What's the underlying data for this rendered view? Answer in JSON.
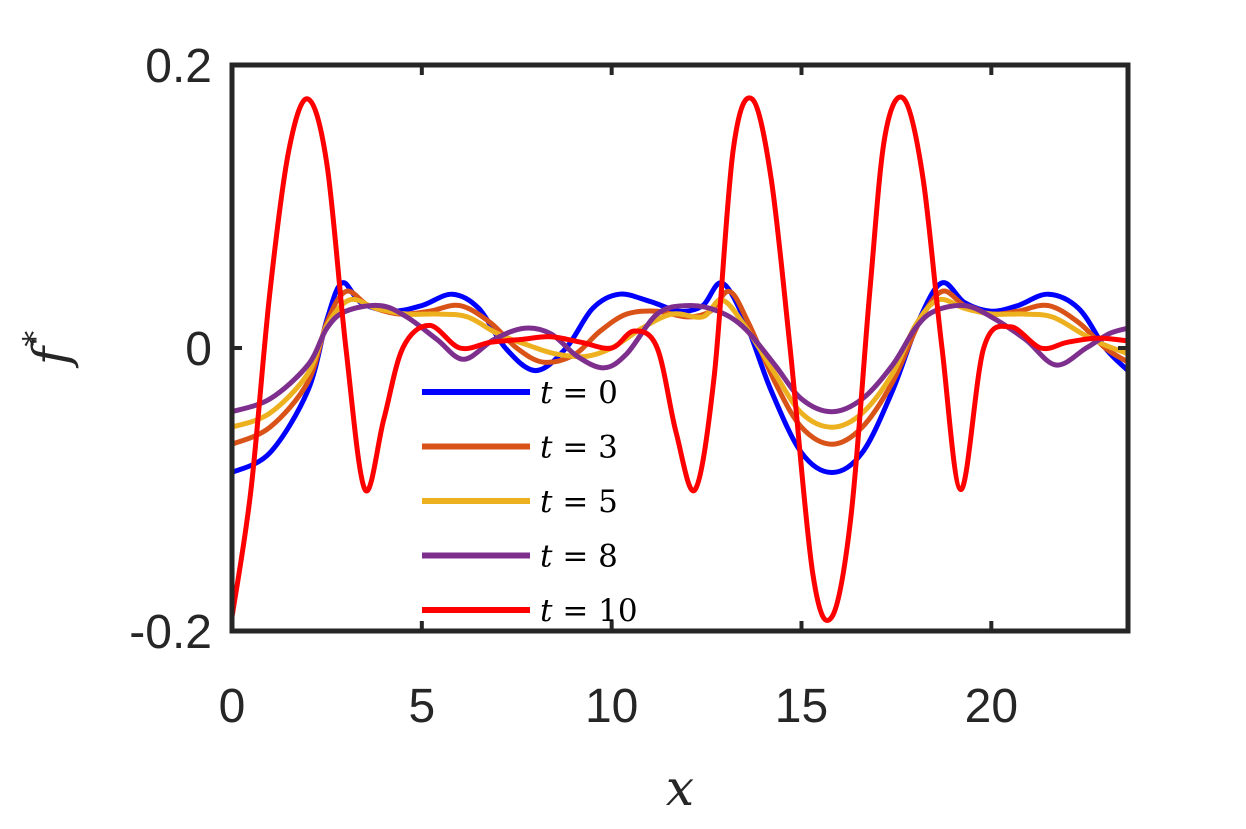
{
  "chart_data": {
    "type": "line",
    "xlabel": "x",
    "ylabel": "f",
    "ylabel_superscript": "*",
    "xlim": [
      0,
      23.6
    ],
    "ylim": [
      -0.2,
      0.2
    ],
    "xticks": [
      0,
      5,
      10,
      15,
      20
    ],
    "yticks": [
      -0.2,
      0,
      0.2
    ],
    "ytick_labels": [
      "-0.2",
      "0",
      "0.2"
    ],
    "grid": false,
    "legend_position": "bottom-center",
    "series": [
      {
        "name": "t = 0",
        "legend_var": "t",
        "legend_eq": " = ",
        "legend_val": "0",
        "color": "#0000ff",
        "x": [
          0,
          1,
          2,
          2.5,
          2.9,
          3.4,
          4.2,
          5.0,
          5.8,
          6.5,
          7.2,
          8.0,
          8.8,
          9.5,
          10.2,
          11.0,
          11.8,
          12.4,
          12.9,
          13.5,
          14.2,
          15.0,
          15.8,
          16.6,
          17.4,
          18.1,
          18.7,
          19.3,
          20.0,
          20.7,
          21.5,
          22.3,
          23.0,
          23.6
        ],
        "y": [
          -0.088,
          -0.074,
          -0.03,
          0.02,
          0.046,
          0.032,
          0.026,
          0.03,
          0.038,
          0.028,
          0.0,
          -0.016,
          0.0,
          0.028,
          0.038,
          0.033,
          0.026,
          0.03,
          0.046,
          0.02,
          -0.03,
          -0.074,
          -0.088,
          -0.074,
          -0.03,
          0.02,
          0.046,
          0.032,
          0.026,
          0.03,
          0.038,
          0.028,
          0.0,
          -0.016
        ]
      },
      {
        "name": "t = 3",
        "legend_var": "t",
        "legend_eq": " = ",
        "legend_val": "3",
        "color": "#d95319",
        "x": [
          0,
          1,
          2,
          2.5,
          3.0,
          3.6,
          4.4,
          5.2,
          6.0,
          6.8,
          7.5,
          8.2,
          9.0,
          9.7,
          10.4,
          11.2,
          12.0,
          12.6,
          13.1,
          13.6,
          14.3,
          15.0,
          15.8,
          16.6,
          17.4,
          18.1,
          18.7,
          19.3,
          20.0,
          20.7,
          21.5,
          22.3,
          23.0,
          23.6
        ],
        "y": [
          -0.068,
          -0.056,
          -0.024,
          0.018,
          0.04,
          0.03,
          0.024,
          0.026,
          0.03,
          0.018,
          0.0,
          -0.01,
          -0.005,
          0.012,
          0.024,
          0.026,
          0.022,
          0.026,
          0.04,
          0.018,
          -0.024,
          -0.056,
          -0.068,
          -0.056,
          -0.024,
          0.018,
          0.04,
          0.03,
          0.024,
          0.026,
          0.03,
          0.018,
          0.0,
          -0.01
        ]
      },
      {
        "name": "t = 5",
        "legend_var": "t",
        "legend_eq": " = ",
        "legend_val": "5",
        "color": "#edb120",
        "x": [
          0,
          1,
          2,
          2.5,
          3.1,
          3.8,
          4.6,
          5.4,
          6.2,
          7.0,
          7.8,
          8.5,
          9.3,
          10.0,
          10.8,
          11.6,
          12.4,
          12.9,
          13.5,
          14.3,
          15.0,
          15.8,
          16.6,
          17.4,
          18.0,
          18.6,
          19.3,
          20.0,
          20.8,
          21.6,
          22.4,
          23.0,
          23.6
        ],
        "y": [
          -0.056,
          -0.046,
          -0.018,
          0.016,
          0.034,
          0.028,
          0.024,
          0.024,
          0.022,
          0.01,
          0.002,
          -0.004,
          -0.006,
          0.0,
          0.014,
          0.024,
          0.022,
          0.034,
          0.016,
          -0.018,
          -0.046,
          -0.056,
          -0.046,
          -0.018,
          0.016,
          0.034,
          0.028,
          0.024,
          0.024,
          0.022,
          0.01,
          0.002,
          -0.004
        ]
      },
      {
        "name": "t = 8",
        "legend_var": "t",
        "legend_eq": " = ",
        "legend_val": "8",
        "color": "#7e2f8e",
        "x": [
          0,
          1,
          2,
          2.5,
          3.0,
          3.9,
          4.6,
          5.4,
          6.1,
          6.9,
          7.7,
          8.4,
          9.1,
          9.8,
          10.4,
          11.2,
          12.0,
          12.8,
          13.5,
          14.3,
          15.0,
          15.8,
          16.6,
          17.4,
          18.0,
          18.5,
          19.3,
          20.0,
          20.9,
          21.7,
          22.5,
          23.1,
          23.6
        ],
        "y": [
          -0.045,
          -0.036,
          -0.012,
          0.014,
          0.026,
          0.03,
          0.022,
          0.006,
          -0.008,
          0.006,
          0.014,
          0.01,
          -0.006,
          -0.014,
          -0.004,
          0.024,
          0.03,
          0.026,
          0.014,
          -0.012,
          -0.036,
          -0.045,
          -0.036,
          -0.012,
          0.014,
          0.026,
          0.03,
          0.022,
          0.006,
          -0.012,
          0.0,
          0.01,
          0.014
        ]
      },
      {
        "name": "t = 10",
        "legend_var": "t",
        "legend_eq": " = ",
        "legend_val": "10",
        "color": "#ff0000",
        "x": [
          0,
          0.5,
          1.0,
          1.5,
          2.0,
          2.5,
          3.0,
          3.5,
          4.0,
          4.5,
          5.2,
          6.0,
          6.8,
          7.6,
          8.4,
          9.2,
          10.0,
          10.6,
          11.2,
          11.7,
          12.2,
          12.7,
          13.2,
          13.7,
          14.2,
          14.7,
          15.3,
          15.8,
          16.3,
          16.8,
          17.2,
          17.7,
          18.2,
          18.7,
          19.2,
          19.8,
          20.5,
          21.3,
          22.0,
          22.8,
          23.6
        ],
        "y": [
          -0.19,
          -0.1,
          0.04,
          0.14,
          0.176,
          0.13,
          0.0,
          -0.1,
          -0.05,
          0.0,
          0.016,
          0.0,
          0.004,
          0.006,
          0.008,
          0.004,
          0.0,
          0.012,
          0.0,
          -0.06,
          -0.1,
          -0.02,
          0.14,
          0.176,
          0.12,
          0.0,
          -0.16,
          -0.19,
          -0.12,
          0.04,
          0.15,
          0.176,
          0.12,
          0.0,
          -0.1,
          0.0,
          0.015,
          0.0,
          0.004,
          0.007,
          0.005
        ]
      }
    ]
  }
}
